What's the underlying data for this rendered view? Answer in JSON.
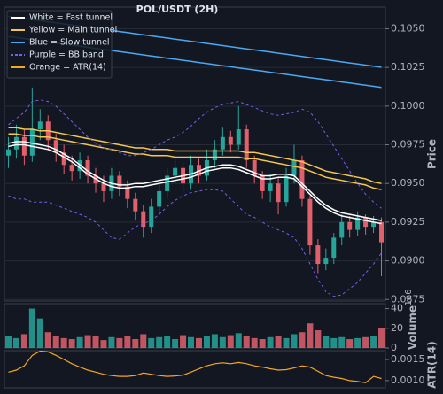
{
  "chart_data": {
    "type": "candlestick",
    "title": "POL/USDT (2H)",
    "ylabel": "Price",
    "ylim": [
      0.0874,
      0.1064
    ],
    "yticks": [
      {
        "value": 0.105,
        "label": "0.1050"
      },
      0.1025,
      {
        "value": 0.1,
        "label": "0.1000"
      },
      0.0975,
      {
        "value": 0.095,
        "label": "0.0950"
      },
      0.0925,
      {
        "value": 0.09,
        "label": "0.0900"
      },
      0.0875
    ],
    "grid": true,
    "up_color": "#26a69a",
    "down_color": "#e0606c",
    "open": [
      0.0968,
      0.0972,
      0.098,
      0.0968,
      0.0985,
      0.099,
      0.0978,
      0.097,
      0.0962,
      0.0958,
      0.0965,
      0.0955,
      0.095,
      0.0945,
      0.0955,
      0.0948,
      0.094,
      0.0932,
      0.0922,
      0.0935,
      0.0945,
      0.0955,
      0.096,
      0.095,
      0.0962,
      0.0955,
      0.0965,
      0.0972,
      0.098,
      0.0975,
      0.0985,
      0.0965,
      0.0955,
      0.0945,
      0.095,
      0.0938,
      0.0955,
      0.0965,
      0.094,
      0.091,
      0.0898,
      0.0902,
      0.0915,
      0.0925,
      0.092,
      0.0928,
      0.0922,
      0.0925
    ],
    "high": [
      0.098,
      0.0988,
      0.0985,
      0.1012,
      0.0998,
      0.0994,
      0.0982,
      0.0975,
      0.0968,
      0.097,
      0.0968,
      0.096,
      0.0955,
      0.096,
      0.0958,
      0.0952,
      0.0944,
      0.0936,
      0.094,
      0.095,
      0.096,
      0.0966,
      0.0964,
      0.0968,
      0.0966,
      0.0972,
      0.0978,
      0.0986,
      0.0984,
      0.1,
      0.0988,
      0.0968,
      0.0958,
      0.0956,
      0.0954,
      0.096,
      0.0975,
      0.0968,
      0.0942,
      0.0914,
      0.0908,
      0.0918,
      0.093,
      0.0929,
      0.0932,
      0.093,
      0.0929,
      0.0928
    ],
    "low": [
      0.096,
      0.0966,
      0.0962,
      0.0964,
      0.0978,
      0.0972,
      0.0964,
      0.0956,
      0.0952,
      0.0953,
      0.095,
      0.0944,
      0.0938,
      0.094,
      0.0942,
      0.0934,
      0.0926,
      0.0915,
      0.0918,
      0.093,
      0.094,
      0.095,
      0.0944,
      0.0946,
      0.095,
      0.0952,
      0.096,
      0.0968,
      0.097,
      0.0972,
      0.096,
      0.095,
      0.094,
      0.0938,
      0.093,
      0.0935,
      0.095,
      0.0935,
      0.0904,
      0.0892,
      0.0894,
      0.0898,
      0.091,
      0.0915,
      0.0916,
      0.0917,
      0.0918,
      0.089
    ],
    "close": [
      0.0972,
      0.098,
      0.0968,
      0.0985,
      0.099,
      0.0978,
      0.097,
      0.0962,
      0.0958,
      0.0965,
      0.0955,
      0.095,
      0.0945,
      0.0955,
      0.0948,
      0.094,
      0.0932,
      0.0922,
      0.0935,
      0.0945,
      0.0955,
      0.096,
      0.095,
      0.0962,
      0.0955,
      0.0965,
      0.0972,
      0.098,
      0.0975,
      0.0985,
      0.0965,
      0.0955,
      0.0945,
      0.095,
      0.0938,
      0.0955,
      0.0965,
      0.094,
      0.091,
      0.0898,
      0.0902,
      0.0915,
      0.0925,
      0.092,
      0.0928,
      0.0922,
      0.0925,
      0.0912
    ],
    "overlays": [
      {
        "name": "White = Fast tunnel",
        "color": "#ffffff",
        "dashed": false,
        "upper": [
          0.0976,
          0.0977,
          0.0977,
          0.0976,
          0.0975,
          0.0974,
          0.0972,
          0.0969,
          0.0966,
          0.0962,
          0.0958,
          0.0955,
          0.0952,
          0.095,
          0.0949,
          0.0949,
          0.095,
          0.095,
          0.0951,
          0.0952,
          0.0953,
          0.0954,
          0.0955,
          0.0956,
          0.0958,
          0.096,
          0.0961,
          0.0962,
          0.0962,
          0.0961,
          0.0959,
          0.0957,
          0.0955,
          0.0955,
          0.0956,
          0.0956,
          0.0955,
          0.095,
          0.0945,
          0.094,
          0.0936,
          0.0933,
          0.0931,
          0.093,
          0.0929,
          0.0928,
          0.0927,
          0.0926
        ],
        "lower": [
          0.0974,
          0.0975,
          0.0975,
          0.0974,
          0.0973,
          0.0972,
          0.097,
          0.0967,
          0.0964,
          0.096,
          0.0956,
          0.0953,
          0.095,
          0.0948,
          0.0947,
          0.0947,
          0.0948,
          0.0948,
          0.0949,
          0.095,
          0.0951,
          0.0952,
          0.0953,
          0.0954,
          0.0956,
          0.0958,
          0.0959,
          0.096,
          0.096,
          0.0959,
          0.0957,
          0.0955,
          0.0953,
          0.0953,
          0.0954,
          0.0954,
          0.0953,
          0.0948,
          0.0943,
          0.0938,
          0.0934,
          0.0931,
          0.0929,
          0.0928,
          0.0927,
          0.0926,
          0.0925,
          0.0924
        ]
      },
      {
        "name": "Yellow = Main tunnel",
        "color": "#f5c84c",
        "dashed": false,
        "upper": [
          0.0986,
          0.0986,
          0.0985,
          0.0985,
          0.0984,
          0.0984,
          0.0983,
          0.0982,
          0.0981,
          0.098,
          0.0979,
          0.0978,
          0.0977,
          0.0976,
          0.0975,
          0.0974,
          0.0973,
          0.0973,
          0.0972,
          0.0972,
          0.0972,
          0.0971,
          0.0971,
          0.0971,
          0.0971,
          0.0971,
          0.0971,
          0.0971,
          0.0971,
          0.0971,
          0.097,
          0.097,
          0.0969,
          0.0968,
          0.0967,
          0.0966,
          0.0965,
          0.0964,
          0.0962,
          0.096,
          0.0958,
          0.0957,
          0.0956,
          0.0955,
          0.0954,
          0.0953,
          0.0951,
          0.095
        ],
        "lower": [
          0.0982,
          0.0982,
          0.0981,
          0.0981,
          0.098,
          0.098,
          0.0979,
          0.0978,
          0.0977,
          0.0976,
          0.0975,
          0.0974,
          0.0973,
          0.0972,
          0.0971,
          0.097,
          0.0969,
          0.0969,
          0.0968,
          0.0968,
          0.0968,
          0.0967,
          0.0967,
          0.0967,
          0.0967,
          0.0967,
          0.0967,
          0.0967,
          0.0967,
          0.0967,
          0.0966,
          0.0966,
          0.0965,
          0.0964,
          0.0963,
          0.0962,
          0.0961,
          0.096,
          0.0958,
          0.0956,
          0.0954,
          0.0953,
          0.0952,
          0.0951,
          0.095,
          0.0949,
          0.0947,
          0.0946
        ]
      },
      {
        "name": "Blue = Slow tunnel",
        "color": "#4aa8f0",
        "dashed": false,
        "upper": [
          0.1058,
          0.10573,
          0.10566,
          0.10559,
          0.10552,
          0.10545,
          0.10538,
          0.10531,
          0.10524,
          0.10517,
          0.1051,
          0.10503,
          0.10496,
          0.10489,
          0.10482,
          0.10475,
          0.10468,
          0.10461,
          0.10454,
          0.10447,
          0.1044,
          0.10433,
          0.10426,
          0.10419,
          0.10412,
          0.10405,
          0.10398,
          0.10391,
          0.10384,
          0.10377,
          0.1037,
          0.10363,
          0.10356,
          0.10349,
          0.10342,
          0.10335,
          0.10328,
          0.10321,
          0.10314,
          0.10307,
          0.103,
          0.10293,
          0.10286,
          0.10279,
          0.10272,
          0.10265,
          0.10258,
          0.10251
        ],
        "lower": [
          0.1045,
          0.10443,
          0.10436,
          0.10429,
          0.10422,
          0.10415,
          0.10408,
          0.10401,
          0.10394,
          0.10387,
          0.1038,
          0.10373,
          0.10366,
          0.10359,
          0.10352,
          0.10345,
          0.10338,
          0.10331,
          0.10324,
          0.10317,
          0.1031,
          0.10303,
          0.10296,
          0.10289,
          0.10282,
          0.10275,
          0.10268,
          0.10261,
          0.10254,
          0.10247,
          0.1024,
          0.10233,
          0.10226,
          0.10219,
          0.10212,
          0.10205,
          0.10198,
          0.10191,
          0.10184,
          0.10177,
          0.1017,
          0.10163,
          0.10156,
          0.10149,
          0.10142,
          0.10135,
          0.10128,
          0.10121
        ]
      },
      {
        "name": "Purple = BB band",
        "color": "#7b5ce6",
        "dashed": true,
        "upper": [
          0.0988,
          0.0992,
          0.0996,
          0.1003,
          0.1004,
          0.1003,
          0.1,
          0.0995,
          0.099,
          0.0985,
          0.098,
          0.0976,
          0.0973,
          0.0972,
          0.097,
          0.0968,
          0.0968,
          0.097,
          0.0972,
          0.0975,
          0.0978,
          0.098,
          0.0983,
          0.0987,
          0.0992,
          0.0996,
          0.0999,
          0.1001,
          0.1002,
          0.1003,
          0.1001,
          0.0999,
          0.0997,
          0.0995,
          0.0994,
          0.0995,
          0.0996,
          0.0998,
          0.0996,
          0.099,
          0.0982,
          0.0974,
          0.0966,
          0.0958,
          0.095,
          0.0943,
          0.0938,
          0.0934
        ],
        "lower": [
          0.0942,
          0.094,
          0.094,
          0.0938,
          0.0938,
          0.0938,
          0.0936,
          0.0934,
          0.0932,
          0.093,
          0.0928,
          0.0925,
          0.092,
          0.0915,
          0.0914,
          0.0918,
          0.0922,
          0.0924,
          0.0926,
          0.093,
          0.0935,
          0.0939,
          0.0942,
          0.0944,
          0.0945,
          0.0946,
          0.0946,
          0.0945,
          0.094,
          0.0935,
          0.093,
          0.0928,
          0.0925,
          0.0922,
          0.092,
          0.0918,
          0.0915,
          0.0908,
          0.0898,
          0.0888,
          0.088,
          0.0877,
          0.0878,
          0.0882,
          0.0886,
          0.0892,
          0.0898,
          0.0905
        ]
      }
    ],
    "volume": {
      "type": "bar",
      "ylabel": "Volume",
      "offset_label": "1e6",
      "ylim": [
        0,
        45
      ],
      "yticks": [
        0,
        20,
        40
      ],
      "values": [
        12,
        10,
        14,
        40,
        30,
        16,
        12,
        10,
        9,
        11,
        13,
        12,
        8,
        11,
        10,
        12,
        9,
        14,
        10,
        11,
        12,
        9,
        13,
        11,
        10,
        12,
        14,
        11,
        13,
        15,
        12,
        10,
        9,
        11,
        12,
        10,
        14,
        16,
        25,
        18,
        12,
        10,
        11,
        9,
        10,
        11,
        12,
        20
      ]
    },
    "atr": {
      "type": "line",
      "name": "Orange = ATR(14)",
      "ylabel": "ATR(14)",
      "color": "#f5a623",
      "ylim": [
        0.00083,
        0.00171
      ],
      "yticks": [
        {
          "value": 0.001,
          "label": "0.0010"
        },
        0.0015
      ],
      "values": [
        0.0012,
        0.00125,
        0.00135,
        0.0016,
        0.0017,
        0.00168,
        0.0016,
        0.0015,
        0.0014,
        0.00132,
        0.00125,
        0.0012,
        0.00115,
        0.00112,
        0.0011,
        0.0011,
        0.00112,
        0.00118,
        0.00115,
        0.00112,
        0.0011,
        0.00111,
        0.00113,
        0.0012,
        0.00128,
        0.00135,
        0.0014,
        0.00142,
        0.0014,
        0.00143,
        0.0014,
        0.00135,
        0.00132,
        0.00128,
        0.00125,
        0.00126,
        0.0013,
        0.00135,
        0.00132,
        0.00122,
        0.00112,
        0.00108,
        0.00105,
        0.001,
        0.00098,
        0.00095,
        0.0011,
        0.00105
      ]
    }
  }
}
